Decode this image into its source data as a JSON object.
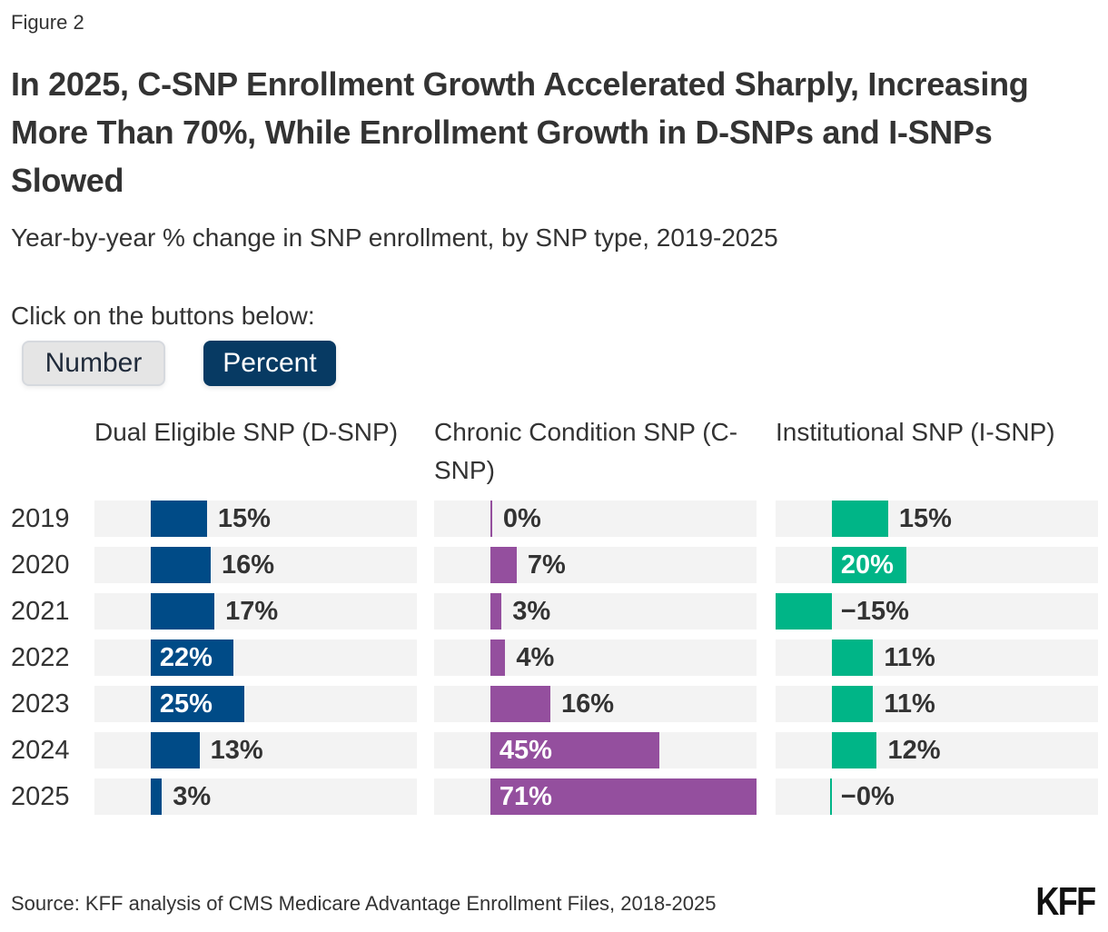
{
  "figure_label": "Figure 2",
  "title": "In 2025, C-SNP Enrollment Growth Accelerated Sharply, Increasing More Than 70%, While Enrollment Growth in D-SNPs and I-SNPs Slowed",
  "subtitle": "Year-by-year % change in SNP enrollment, by SNP type, 2019-2025",
  "instructions": "Click on the buttons below:",
  "buttons": [
    {
      "label": "Number",
      "active": false
    },
    {
      "label": "Percent",
      "active": true
    }
  ],
  "source": "Source: KFF analysis of CMS Medicare Advantage Enrollment Files, 2018-2025",
  "logo": "KFF",
  "chart_data": {
    "type": "bar",
    "orientation": "horizontal",
    "layout": "small-multiples",
    "title": "Year-by-year % change in SNP enrollment, by SNP type, 2019-2025",
    "categories": [
      "2019",
      "2020",
      "2021",
      "2022",
      "2023",
      "2024",
      "2025"
    ],
    "xlim": [
      -15,
      71
    ],
    "unit": "%",
    "grid": false,
    "series": [
      {
        "name": "Dual Eligible SNP (D-SNP)",
        "color": "#004b87",
        "values": [
          15,
          16,
          17,
          22,
          25,
          13,
          3
        ],
        "labels": [
          "15%",
          "16%",
          "17%",
          "22%",
          "25%",
          "13%",
          "3%"
        ]
      },
      {
        "name": "Chronic Condition SNP (C-SNP)",
        "color": "#944f9e",
        "values": [
          0,
          7,
          3,
          4,
          16,
          45,
          71
        ],
        "labels": [
          "0%",
          "7%",
          "3%",
          "4%",
          "16%",
          "45%",
          "71%"
        ]
      },
      {
        "name": "Institutional SNP (I-SNP)",
        "color": "#00b587",
        "values": [
          15,
          20,
          -15,
          11,
          11,
          12,
          -0.2
        ],
        "labels": [
          "15%",
          "20%",
          "−15%",
          "11%",
          "11%",
          "12%",
          "−0%"
        ]
      }
    ]
  }
}
